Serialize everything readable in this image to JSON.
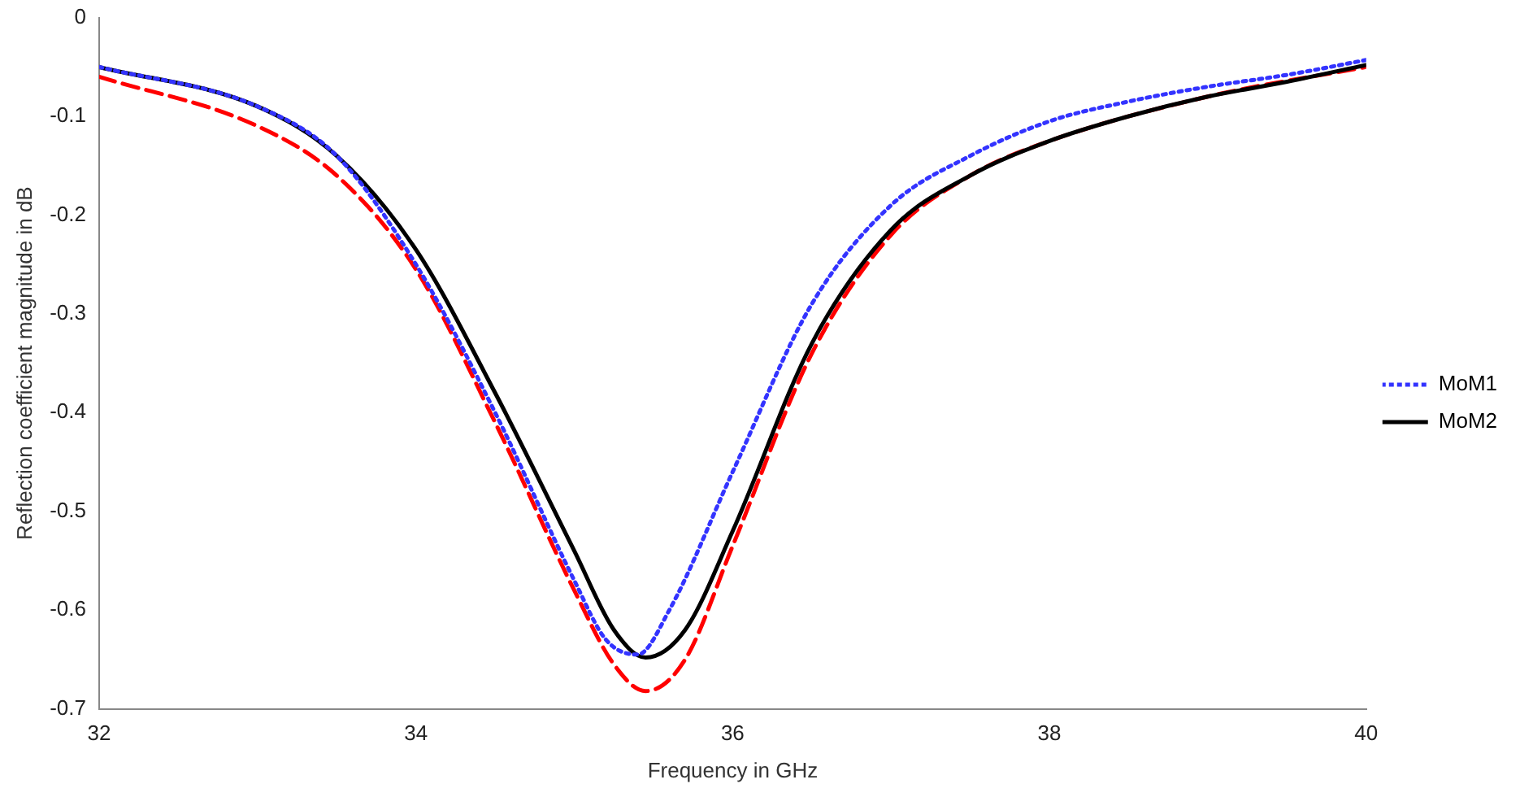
{
  "chart_data": {
    "type": "line",
    "xlabel": "Frequency in GHz",
    "ylabel": "Reflection coefficient magnitude in dB",
    "xlim": [
      32,
      40
    ],
    "xticks": [
      32,
      34,
      36,
      38,
      40
    ],
    "ylim": [
      -0.7,
      0
    ],
    "yticks": [
      -0.7,
      -0.6,
      -0.5,
      -0.4,
      -0.3,
      -0.2,
      -0.1,
      0
    ],
    "grid": false,
    "legend": "right",
    "marker": "none",
    "series": [
      {
        "name": "MoM1",
        "color": "#3333ff",
        "line_style": "dotted",
        "x": [
          32,
          33,
          33.5,
          34,
          34.5,
          35,
          35.2,
          35.4,
          35.6,
          36,
          36.5,
          37,
          37.5,
          38,
          38.5,
          39,
          39.5,
          40
        ],
        "values": [
          -0.05,
          -0.09,
          -0.14,
          -0.25,
          -0.4,
          -0.57,
          -0.63,
          -0.645,
          -0.6,
          -0.46,
          -0.29,
          -0.19,
          -0.14,
          -0.105,
          -0.085,
          -0.07,
          -0.058,
          -0.043
        ]
      },
      {
        "name": "MoM2",
        "color": "#000000",
        "line_style": "solid",
        "x": [
          32,
          33,
          33.5,
          34,
          34.5,
          35,
          35.25,
          35.45,
          35.7,
          36,
          36.5,
          37,
          37.5,
          38,
          38.5,
          39,
          39.5,
          40
        ],
        "values": [
          -0.05,
          -0.09,
          -0.14,
          -0.235,
          -0.38,
          -0.54,
          -0.62,
          -0.648,
          -0.62,
          -0.52,
          -0.33,
          -0.215,
          -0.16,
          -0.125,
          -0.1,
          -0.08,
          -0.065,
          -0.048
        ]
      },
      {
        "color": "#ff0000",
        "line_style": "dashed",
        "x": [
          32,
          33,
          33.5,
          34,
          34.5,
          35,
          35.25,
          35.45,
          35.7,
          36,
          36.5,
          37,
          37.5,
          38,
          39,
          40
        ],
        "values": [
          -0.06,
          -0.11,
          -0.16,
          -0.255,
          -0.41,
          -0.58,
          -0.655,
          -0.682,
          -0.65,
          -0.535,
          -0.34,
          -0.22,
          -0.16,
          -0.125,
          -0.08,
          -0.05
        ]
      }
    ]
  }
}
